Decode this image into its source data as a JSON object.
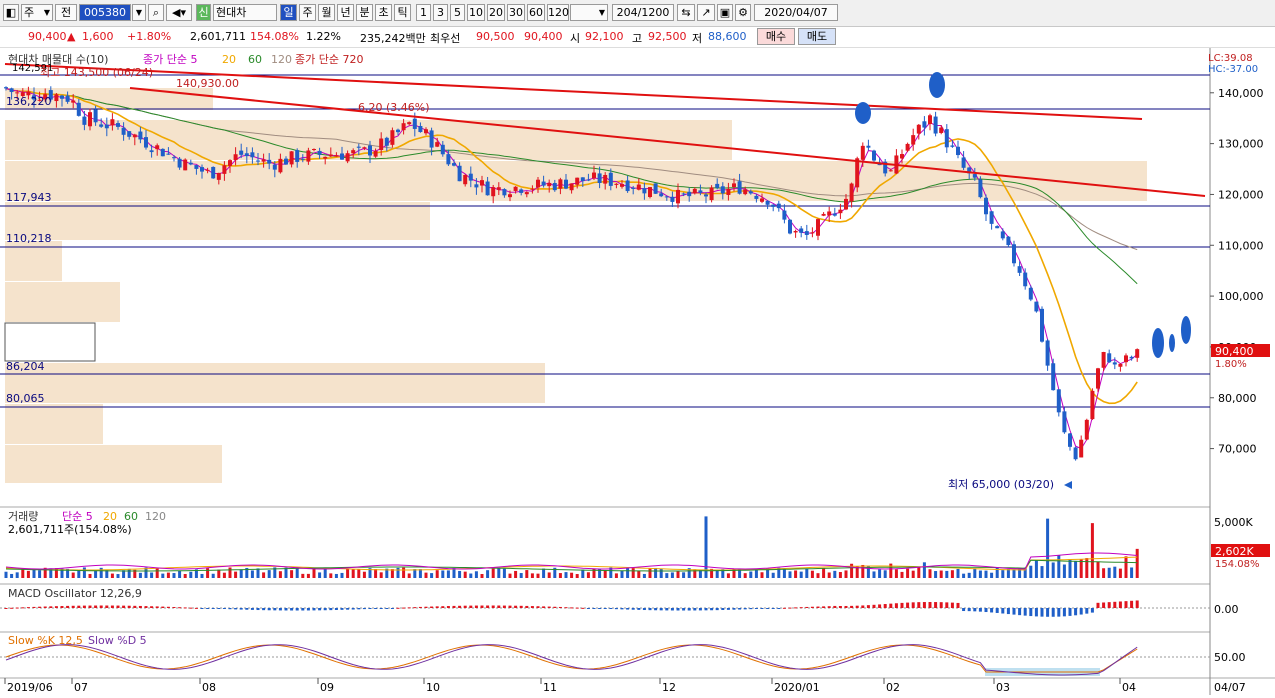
{
  "toolbar": {
    "period_label": "주",
    "prefix_label": "전",
    "code": "005380",
    "stock_name": "현대차",
    "badge": "신",
    "period_tabs": [
      "일",
      "주",
      "월",
      "년",
      "분",
      "초",
      "틱"
    ],
    "count_tabs": [
      "1",
      "3",
      "5",
      "10",
      "20",
      "30",
      "60",
      "120"
    ],
    "count": "204",
    "total": "/1200",
    "date": "2020/04/07"
  },
  "quote": {
    "price": "90,400",
    "change": "1,600",
    "change_pct": "+1.80%",
    "volume": "2,601,711",
    "volume_ratio": "154.08%",
    "turnover": "1.22%",
    "amount": "235,242백만",
    "best_label": "최우선",
    "ask": "90,500",
    "bid": "90,400",
    "open_label": "시",
    "open": "92,100",
    "high_label": "고",
    "high": "92,500",
    "low_label": "저",
    "low": "88,600",
    "buy_label": "매수",
    "sell_label": "매도"
  },
  "icons": {
    "app": "chart-window-icon",
    "search": "search-icon",
    "speaker": "speaker-icon",
    "tools": "tool-icon"
  },
  "colors": {
    "up": "#e0141e",
    "down": "#1f5fc8",
    "ma5": "#c000c0",
    "ma20": "#f0a800",
    "ma60": "#2a8a2a",
    "ma120": "#a08c80",
    "trend": "#e01010",
    "hline": "#0a0a80",
    "vol_profile": "#f5e3cc",
    "last_price_bg": "#e01010"
  },
  "price_panel": {
    "legend": {
      "indicator": "현대차 매물대 수(10)",
      "ma_label": "종가 단순 5",
      "ma_periods": [
        "20",
        "60",
        "120"
      ],
      "ma_long": "종가 단순 720"
    },
    "lc_label": "LC:39.08",
    "hc_label": "HC:-37.00",
    "high_note": "최고 143,500 (06/24)",
    "low_note": "최저 65,000 (03/20)",
    "mid_note": "140,930.00",
    "pct_note": "6.20 (3.46%)",
    "hline_labels": [
      "136,220",
      "117,943",
      "110,218",
      "86,204",
      "80,065"
    ],
    "top_left_label": "142,591",
    "last_price": "90,400",
    "last_pct": "1.80%",
    "yticks": [
      "140,000",
      "130,000",
      "120,000",
      "110,000",
      "100,000",
      "90,000",
      "80,000",
      "70,000"
    ]
  },
  "volume_panel": {
    "legend": {
      "title": "거래량",
      "ma_label": "단순 5",
      "ma_periods": [
        "20",
        "60",
        "120"
      ]
    },
    "value_label": "2,601,711주(154.08%)",
    "ytick": "5,000K",
    "last_value": "2,602K",
    "last_pct": "154.08%"
  },
  "macd_panel": {
    "legend": "MACD Oscillator 12,26,9",
    "ytick": "0.00"
  },
  "stoch_panel": {
    "legend_k": "Slow %K 12,5",
    "legend_d": "Slow %D 5",
    "ytick": "50.00"
  },
  "xaxis": {
    "labels": [
      "2019/06",
      "07",
      "08",
      "09",
      "10",
      "11",
      "12",
      "2020/01",
      "02",
      "03",
      "04"
    ],
    "right_label": "04/07"
  },
  "chart_data": {
    "type": "candlestick",
    "title": "현대차 (005380) 일봉",
    "x_range": [
      "2019/06",
      "2020/04/07"
    ],
    "ylim": [
      63000,
      146000
    ],
    "ohlc_keypoints": [
      {
        "date": "2019/06/24",
        "close": 141000,
        "high": 143500
      },
      {
        "date": "2019/07",
        "close": 139000
      },
      {
        "date": "2019/08",
        "close": 128000
      },
      {
        "date": "2019/09",
        "close": 128000
      },
      {
        "date": "2019/10",
        "close": 134000
      },
      {
        "date": "2019/11",
        "close": 121000
      },
      {
        "date": "2019/12",
        "close": 120000
      },
      {
        "date": "2020/01",
        "close": 115000
      },
      {
        "date": "2020/02",
        "close": 127000
      },
      {
        "date": "2020/02/11",
        "high": 138000
      },
      {
        "date": "2020/03",
        "close": 121000
      },
      {
        "date": "2020/03/20",
        "close": 67000,
        "low": 65000
      },
      {
        "date": "2020/04",
        "close": 87000
      },
      {
        "date": "2020/04/07",
        "open": 92100,
        "high": 92500,
        "low": 88600,
        "close": 90400
      }
    ],
    "horizontal_levels": [
      136220,
      117943,
      110218,
      86204,
      80065
    ],
    "volume_max_tick": 5000000,
    "last_volume": 2601711
  }
}
